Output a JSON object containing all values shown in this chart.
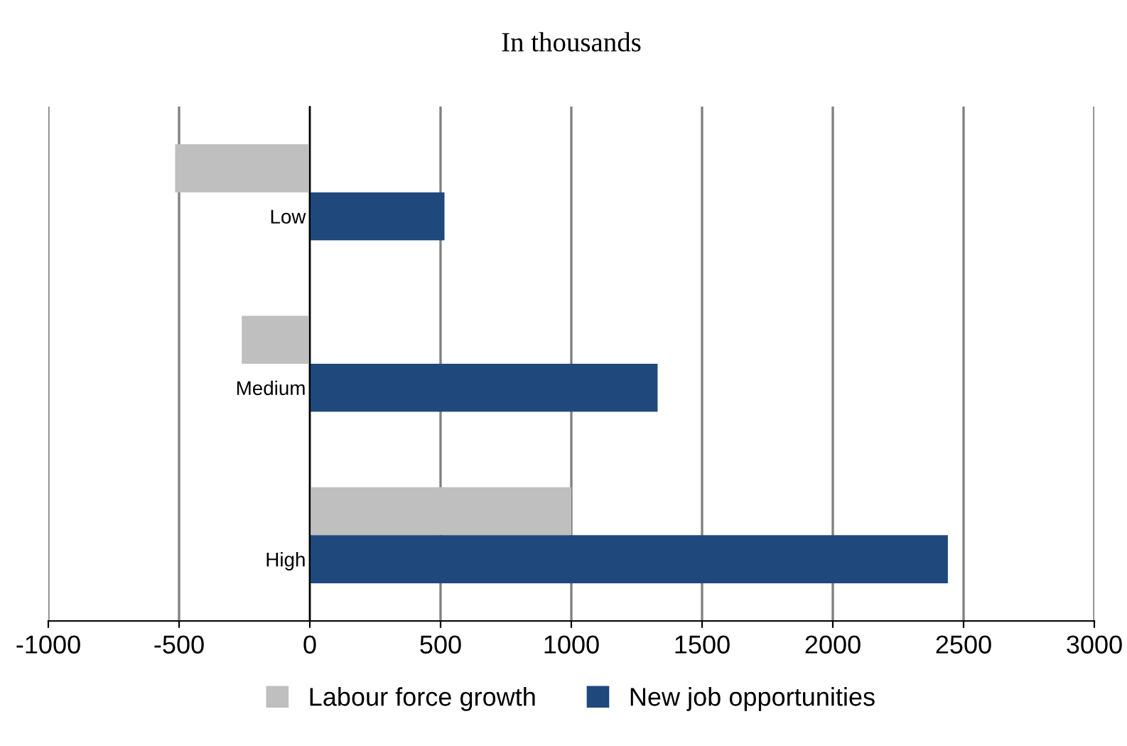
{
  "chart_data": {
    "type": "bar",
    "orientation": "horizontal",
    "title": "In thousands",
    "categories": [
      "Low",
      "Medium",
      "High"
    ],
    "series": [
      {
        "name": "Labour force growth",
        "color": "#bfbfbf",
        "values": [
          -515,
          -260,
          1000
        ]
      },
      {
        "name": "New job opportunities",
        "color": "#1f497d",
        "values": [
          515,
          1330,
          2440
        ]
      }
    ],
    "xlim": [
      -1000,
      3000
    ],
    "xticks": [
      -1000,
      -500,
      0,
      500,
      1000,
      1500,
      2000,
      2500,
      3000
    ],
    "grid": "x",
    "legend": "bottom"
  }
}
